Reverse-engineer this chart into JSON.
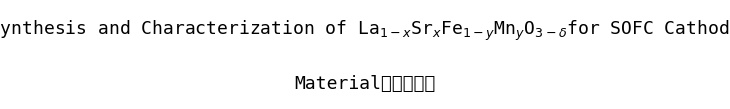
{
  "line1_parts": [
    {
      "text": "Synthesis and Characterization of La",
      "style": "normal"
    },
    {
      "text": "1-x",
      "style": "sub"
    },
    {
      "text": "Sr",
      "style": "normal"
    },
    {
      "text": "x",
      "style": "sub"
    },
    {
      "text": "Fe",
      "style": "normal"
    },
    {
      "text": "1-y",
      "style": "sub"
    },
    {
      "text": "Mn",
      "style": "normal"
    },
    {
      "text": "y",
      "style": "sub"
    },
    {
      "text": "O",
      "style": "normal"
    },
    {
      "text": "3-δ",
      "style": "sub"
    },
    {
      "text": "for SOFC Cathode",
      "style": "normal"
    }
  ],
  "line2": "Material。。。。。",
  "background_color": "#ffffff",
  "text_color": "#000000",
  "font_size": 13,
  "sub_font_size": 9,
  "font_family": "DejaVu Sans Mono"
}
